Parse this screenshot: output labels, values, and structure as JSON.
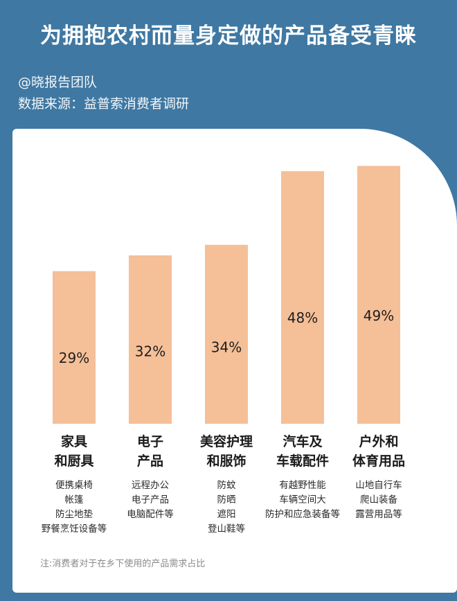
{
  "header": {
    "title": "为拥抱农村而量身定做的产品备受青睐",
    "author": "@晓报告团队",
    "source": "数据来源：益普索消费者调研"
  },
  "footnote": "注:消费者对于在乡下使用的产品需求占比",
  "colors": {
    "background": "#3f78a2",
    "bar": "#f5bf97",
    "card": "#ffffff"
  },
  "chart_data": {
    "type": "bar",
    "categories": [
      "家具和厨具",
      "电子产品",
      "美容护理和服饰",
      "汽车及车载配件",
      "户外和体育用品"
    ],
    "category_lines": [
      [
        "家具",
        "和厨具"
      ],
      [
        "电子",
        "产品"
      ],
      [
        "美容护理",
        "和服饰"
      ],
      [
        "汽车及",
        "车载配件"
      ],
      [
        "户外和",
        "体育用品"
      ]
    ],
    "values": [
      29,
      32,
      34,
      48,
      49
    ],
    "value_labels": [
      "29%",
      "32%",
      "34%",
      "48%",
      "49%"
    ],
    "items": [
      [
        "便携桌椅",
        "帐篷",
        "防尘地垫",
        "野餐烹饪设备等"
      ],
      [
        "远程办公",
        "电子产品",
        "电脑配件等"
      ],
      [
        "防蚊",
        "防晒",
        "遮阳",
        "登山鞋等"
      ],
      [
        "有越野性能",
        "车辆空间大",
        "防护和应急装备等"
      ],
      [
        "山地自行车",
        "爬山装备",
        "露营用品等"
      ]
    ],
    "ylim": [
      0,
      50
    ],
    "grid": false,
    "legend": "none"
  }
}
